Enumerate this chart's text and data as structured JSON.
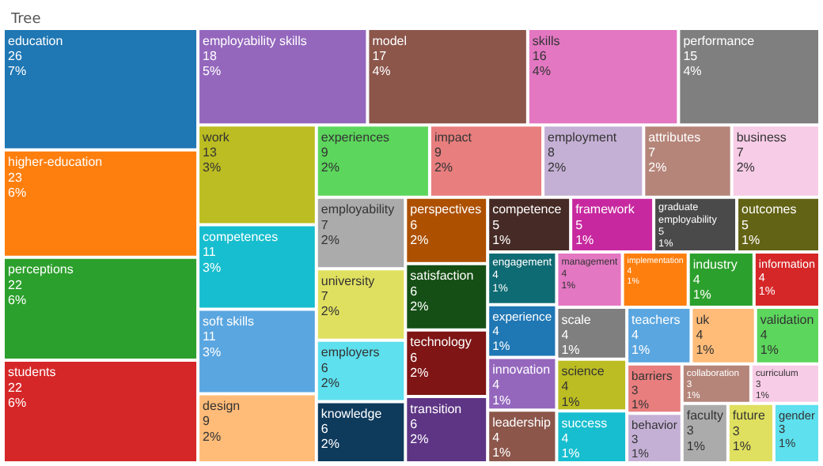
{
  "chart_data": {
    "type": "other",
    "title": "Tree",
    "categories": [
      "education",
      "higher-education",
      "perceptions",
      "students",
      "employability skills",
      "model",
      "skills",
      "performance",
      "work",
      "competences",
      "soft skills",
      "design",
      "experiences",
      "impact",
      "employment",
      "attributes",
      "business",
      "employability",
      "university",
      "employers",
      "knowledge",
      "perspectives",
      "satisfaction",
      "technology",
      "transition",
      "competence",
      "framework",
      "graduate employability",
      "outcomes",
      "engagement",
      "experience",
      "innovation",
      "leadership",
      "management",
      "implementation",
      "industry",
      "information",
      "scale",
      "science",
      "success",
      "teachers",
      "uk",
      "validation",
      "barriers",
      "behavior",
      "collaboration",
      "curriculum",
      "faculty",
      "future",
      "gender"
    ],
    "values": [
      26,
      23,
      22,
      22,
      18,
      17,
      16,
      15,
      13,
      11,
      11,
      9,
      9,
      9,
      8,
      7,
      7,
      7,
      7,
      6,
      6,
      6,
      6,
      6,
      6,
      5,
      5,
      5,
      5,
      4,
      4,
      4,
      4,
      4,
      4,
      4,
      4,
      4,
      4,
      4,
      4,
      4,
      4,
      3,
      3,
      3,
      3,
      3,
      3,
      3
    ],
    "value_labels": [
      "26\n7%",
      "23\n6%",
      "22\n6%",
      "22\n6%",
      "18\n5%",
      "17\n4%",
      "16\n4%",
      "15\n4%",
      "13\n3%",
      "11\n3%",
      "11\n3%",
      "9\n2%",
      "9\n2%",
      "9\n2%",
      "8\n2%",
      "7\n2%",
      "7\n2%",
      "7\n2%",
      "7\n2%",
      "6\n2%",
      "6\n2%",
      "6\n2%",
      "6\n2%",
      "6\n2%",
      "6\n2%",
      "5\n1%",
      "5\n1%",
      "5\n1%",
      "5\n1%",
      "4\n1%",
      "4\n1%",
      "4\n1%",
      "4\n1%",
      "4\n1%",
      "4\n1%",
      "4\n1%",
      "4\n1%",
      "4\n1%",
      "4\n1%",
      "4\n1%",
      "4\n1%",
      "4\n1%",
      "4\n1%",
      "3\n1%",
      "3\n1%",
      "3\n1%",
      "3\n1%",
      "3\n1%",
      "3\n1%",
      "3\n1%"
    ],
    "colors": [
      "#1f77b4",
      "#ff7f0e",
      "#2ca02c",
      "#d62728",
      "#9467bd",
      "#8c564b",
      "#e377c2",
      "#7f7f7f",
      "#bcbd22",
      "#17becf",
      "#5aa6e0",
      "#ffbb78",
      "#5cd65c",
      "#e87e7e",
      "#c5b0d5",
      "#b5857a",
      "#f7cce6",
      "#ababab",
      "#e0e060",
      "#5ee0ee",
      "#0e3a5c",
      "#ad5000",
      "#154f15",
      "#7f1515",
      "#5e3585",
      "#462a25",
      "#c7289f",
      "#4a4a4a",
      "#636315",
      "#0f6b73",
      "#1f77b4",
      "#9467bd",
      "#8c564b",
      "#e377c2",
      "#ff7f0e",
      "#2ca02c",
      "#d62728",
      "#7f7f7f",
      "#bcbd22",
      "#17becf",
      "#5aa6e0",
      "#ffbb78",
      "#5cd65c",
      "#e87e7e",
      "#c5b0d5",
      "#b5857a",
      "#f7cce6",
      "#ababab",
      "#e0e060",
      "#5ee0ee"
    ]
  }
}
